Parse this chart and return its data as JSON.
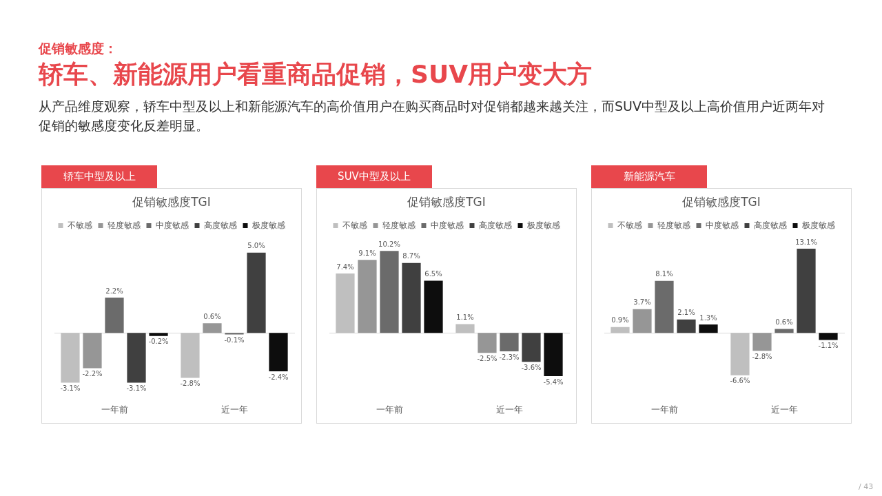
{
  "chart_data": [
    {
      "type": "other",
      "title": "促销敏感度：",
      "subtitle": "轿车、新能源用户看重商品促销，SUV用户变大方",
      "annotations": [
        "从产品维度观察，轿车中型及以上和新能源汽车的高价值用户在购买商品时对促销都越来越关注，而SUV中型及以上高价值用户近两年对促销的敏感度变化反差明显。",
        "/ 43"
      ]
    },
    {
      "type": "bar",
      "title": "促销敏感度TGI",
      "subtitle": "轿车中型及以上",
      "categories": [
        "一年前",
        "近一年"
      ],
      "legend": "top",
      "series": [
        {
          "name": "不敏感",
          "color": "#bfbfbf",
          "values": [
            -3.1,
            -2.8
          ],
          "value_labels": [
            "-3.1%",
            "-2.8%"
          ]
        },
        {
          "name": "轻度敏感",
          "color": "#969696",
          "values": [
            -2.2,
            0.6
          ],
          "value_labels": [
            "-2.2%",
            "0.6%"
          ]
        },
        {
          "name": "中度敏感",
          "color": "#6b6b6b",
          "values": [
            2.2,
            -0.1
          ],
          "value_labels": [
            "2.2%",
            "-0.1%"
          ]
        },
        {
          "name": "高度敏感",
          "color": "#404040",
          "values": [
            -3.1,
            5.0
          ],
          "value_labels": [
            "-3.1%",
            "5.0%"
          ]
        },
        {
          "name": "极度敏感",
          "color": "#0d0d0d",
          "values": [
            -0.2,
            -2.4
          ],
          "value_labels": [
            "-0.2%",
            "-2.4%"
          ]
        }
      ]
    },
    {
      "type": "bar",
      "title": "促销敏感度TGI",
      "subtitle": "SUV中型及以上",
      "categories": [
        "一年前",
        "近一年"
      ],
      "legend": "top",
      "series": [
        {
          "name": "不敏感",
          "color": "#bfbfbf",
          "values": [
            7.4,
            1.1
          ],
          "value_labels": [
            "7.4%",
            "1.1%"
          ]
        },
        {
          "name": "轻度敏感",
          "color": "#969696",
          "values": [
            9.1,
            -2.5
          ],
          "value_labels": [
            "9.1%",
            "-2.5%"
          ]
        },
        {
          "name": "中度敏感",
          "color": "#6b6b6b",
          "values": [
            10.2,
            -2.3
          ],
          "value_labels": [
            "10.2%",
            "-2.3%"
          ]
        },
        {
          "name": "高度敏感",
          "color": "#404040",
          "values": [
            8.7,
            -3.6
          ],
          "value_labels": [
            "8.7%",
            "-3.6%"
          ]
        },
        {
          "name": "极度敏感",
          "color": "#0d0d0d",
          "values": [
            6.5,
            -5.4
          ],
          "value_labels": [
            "6.5%",
            "-5.4%"
          ]
        }
      ]
    },
    {
      "type": "bar",
      "title": "促销敏感度TGI",
      "subtitle": "新能源汽车",
      "categories": [
        "一年前",
        "近一年"
      ],
      "legend": "top",
      "series": [
        {
          "name": "不敏感",
          "color": "#bfbfbf",
          "values": [
            0.9,
            -6.6
          ],
          "value_labels": [
            "0.9%",
            "-6.6%"
          ]
        },
        {
          "name": "轻度敏感",
          "color": "#969696",
          "values": [
            3.7,
            -2.8
          ],
          "value_labels": [
            "3.7%",
            "-2.8%"
          ]
        },
        {
          "name": "中度敏感",
          "color": "#6b6b6b",
          "values": [
            8.1,
            0.6
          ],
          "value_labels": [
            "8.1%",
            "0.6%"
          ]
        },
        {
          "name": "高度敏感",
          "color": "#404040",
          "values": [
            2.1,
            13.1
          ],
          "value_labels": [
            "2.1%",
            "13.1%"
          ]
        },
        {
          "name": "极度敏感",
          "color": "#0d0d0d",
          "values": [
            1.3,
            -1.1
          ],
          "value_labels": [
            "1.3%",
            "-1.1%"
          ]
        }
      ]
    }
  ]
}
